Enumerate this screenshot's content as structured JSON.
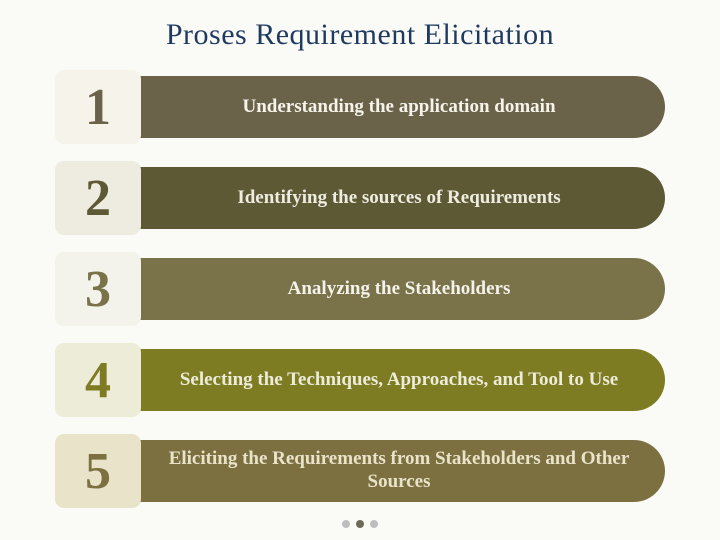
{
  "title": "Proses Requirement Elicitation",
  "title_color": "#1f3a5f",
  "title_fontsize": 30,
  "background_color": "#fafaf7",
  "step_number_fontsize": 52,
  "step_label_fontsize": 19,
  "steps": [
    {
      "number": "1",
      "label": "Understanding the application domain",
      "number_bg": "#f6f4ea",
      "number_color": "#6b624a",
      "label_bg": "#6b624a",
      "label_color": "#f6f4ea"
    },
    {
      "number": "2",
      "label": "Identifying the sources of Requirements",
      "number_bg": "#eeece0",
      "number_color": "#5d5935",
      "label_bg": "#5d5935",
      "label_color": "#eeece0"
    },
    {
      "number": "3",
      "label": "Analyzing the Stakeholders",
      "number_bg": "#f4f3eb",
      "number_color": "#7a7248",
      "label_bg": "#7a7248",
      "label_color": "#f4f3eb"
    },
    {
      "number": "4",
      "label": "Selecting the Techniques, Approaches, and Tool to Use",
      "number_bg": "#edecd9",
      "number_color": "#7e7c22",
      "label_bg": "#7e7c22",
      "label_color": "#edecd9"
    },
    {
      "number": "5",
      "label": "Eliciting the Requirements from Stakeholders and Other Sources",
      "number_bg": "#e9e3c9",
      "number_color": "#7c7040",
      "label_bg": "#7c7040",
      "label_color": "#e9e3c9"
    }
  ],
  "pager": {
    "dot_count": 3,
    "active_index": 1,
    "dot_color": "#bdbdbd",
    "active_color": "#6b6b56"
  }
}
